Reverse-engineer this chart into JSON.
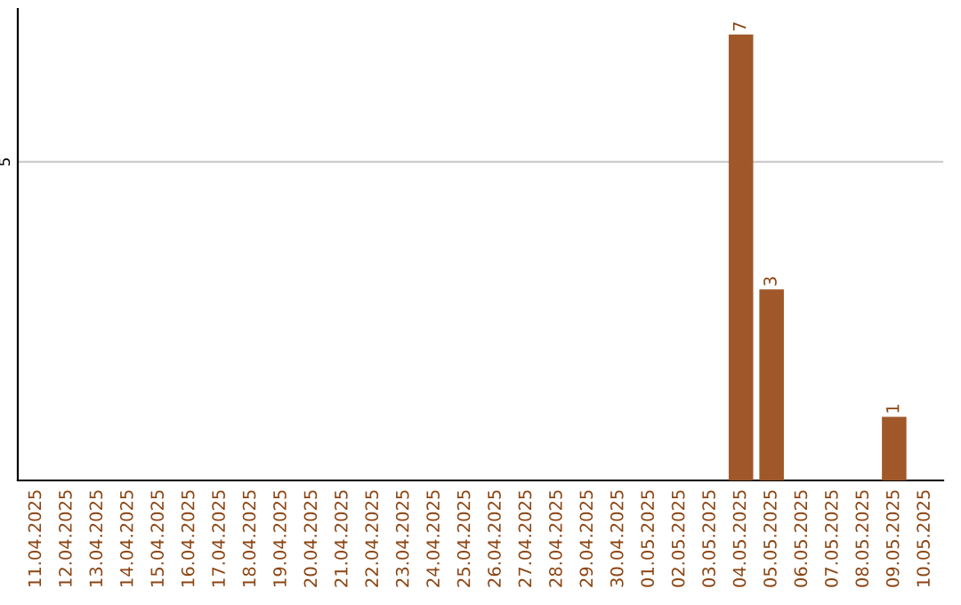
{
  "chart_data": {
    "type": "bar",
    "categories": [
      "11.04.2025",
      "12.04.2025",
      "13.04.2025",
      "14.04.2025",
      "15.04.2025",
      "16.04.2025",
      "17.04.2025",
      "18.04.2025",
      "19.04.2025",
      "20.04.2025",
      "21.04.2025",
      "22.04.2025",
      "23.04.2025",
      "24.04.2025",
      "25.04.2025",
      "26.04.2025",
      "27.04.2025",
      "28.04.2025",
      "29.04.2025",
      "30.04.2025",
      "01.05.2025",
      "02.05.2025",
      "03.05.2025",
      "04.05.2025",
      "05.05.2025",
      "06.05.2025",
      "07.05.2025",
      "08.05.2025",
      "09.05.2025",
      "10.05.2025"
    ],
    "values": [
      null,
      null,
      null,
      null,
      null,
      null,
      null,
      null,
      null,
      null,
      null,
      null,
      null,
      null,
      null,
      null,
      null,
      null,
      null,
      null,
      null,
      null,
      null,
      7,
      3,
      null,
      null,
      null,
      1,
      null
    ],
    "color": "#a0582a",
    "ylim": [
      0,
      7.4
    ],
    "yticks": [
      5
    ],
    "grid": "y",
    "data_labels": true
  }
}
